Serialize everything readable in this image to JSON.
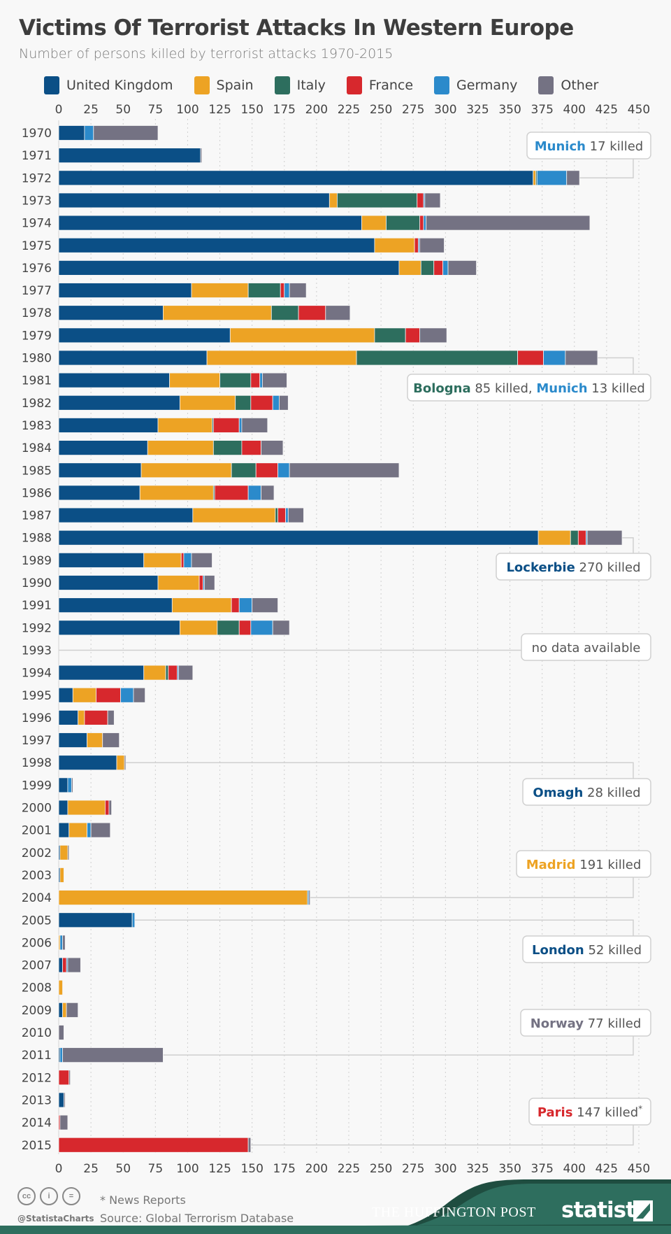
{
  "title": "Victims Of Terrorist Attacks In Western Europe",
  "subtitle": "Number of persons killed by terrorist attacks 1970-2015",
  "footer": {
    "note": "* News Reports",
    "source": "Source: Global Terrorism Database",
    "handle": "@StatistaCharts",
    "partner": "THE HUFFINGTON POST",
    "brand": "statista",
    "cc_icons": [
      "cc-icon",
      "attribution-icon",
      "no-derivatives-icon"
    ],
    "cc_glyphs": [
      "cc",
      "i",
      "="
    ]
  },
  "chart_data": {
    "type": "bar",
    "orientation": "horizontal",
    "stacked": true,
    "title": "Victims Of Terrorist Attacks In Western Europe",
    "subtitle": "Number of persons killed by terrorist attacks 1970-2015",
    "xlim": [
      0,
      450
    ],
    "xticks": [
      "0",
      "25",
      "50",
      "75",
      "100",
      "125",
      "150",
      "175",
      "200",
      "225",
      "250",
      "275",
      "300",
      "325",
      "350",
      "375",
      "400",
      "425",
      "450"
    ],
    "grid": "vertical dotted",
    "legend_position": "top",
    "categories": [
      "1970",
      "1971",
      "1972",
      "1973",
      "1974",
      "1975",
      "1976",
      "1977",
      "1978",
      "1979",
      "1980",
      "1981",
      "1982",
      "1983",
      "1984",
      "1985",
      "1986",
      "1987",
      "1988",
      "1989",
      "1990",
      "1991",
      "1992",
      "1993",
      "1994",
      "1995",
      "1996",
      "1997",
      "1998",
      "1999",
      "2000",
      "2001",
      "2002",
      "2003",
      "2004",
      "2005",
      "2006",
      "2007",
      "2008",
      "2009",
      "2010",
      "2011",
      "2012",
      "2013",
      "2014",
      "2015"
    ],
    "series": [
      {
        "name": "United Kingdom",
        "color": "#0b4f86",
        "values": [
          20,
          110,
          368,
          210,
          235,
          245,
          264,
          103,
          81,
          133,
          115,
          86,
          94,
          77,
          69,
          64,
          63,
          104,
          372,
          66,
          77,
          88,
          94,
          null,
          66,
          11,
          15,
          22,
          45,
          7,
          7,
          8,
          1,
          1,
          0,
          57,
          0,
          3,
          0,
          3,
          0,
          1,
          0,
          4,
          0,
          0
        ]
      },
      {
        "name": "Spain",
        "color": "#eda324",
        "values": [
          0,
          0,
          2,
          6,
          19,
          31,
          17,
          44,
          84,
          112,
          116,
          39,
          43,
          42,
          51,
          70,
          57,
          64,
          25,
          29,
          32,
          46,
          29,
          null,
          17,
          18,
          5,
          12,
          6,
          0,
          29,
          14,
          6,
          3,
          193,
          0,
          1,
          0,
          3,
          3,
          0,
          0,
          0,
          0,
          0,
          0
        ]
      },
      {
        "name": "Italy",
        "color": "#2d6e5e",
        "values": [
          0,
          0,
          1,
          62,
          26,
          0,
          10,
          25,
          21,
          24,
          125,
          24,
          12,
          1,
          22,
          19,
          1,
          2,
          6,
          0,
          0,
          0,
          17,
          null,
          2,
          0,
          0,
          0,
          0,
          0,
          0,
          0,
          0,
          0,
          0,
          0,
          0,
          0,
          0,
          0,
          0,
          0,
          0,
          0,
          0,
          0
        ]
      },
      {
        "name": "France",
        "color": "#d7282d",
        "values": [
          0,
          0,
          0,
          5,
          3,
          3,
          7,
          3,
          21,
          11,
          20,
          7,
          17,
          20,
          15,
          17,
          26,
          6,
          6,
          2,
          3,
          6,
          9,
          null,
          7,
          19,
          18,
          0,
          0,
          0,
          3,
          0,
          0,
          0,
          0,
          0,
          0,
          3,
          0,
          0,
          0,
          0,
          8,
          0,
          1,
          147
        ]
      },
      {
        "name": "Germany",
        "color": "#2b8acb",
        "values": [
          7,
          0,
          23,
          1,
          2,
          1,
          4,
          4,
          0,
          0,
          17,
          2,
          5,
          2,
          0,
          9,
          10,
          2,
          1,
          6,
          1,
          10,
          17,
          null,
          1,
          10,
          0,
          0,
          0,
          3,
          0,
          3,
          0,
          0,
          1,
          2,
          2,
          1,
          0,
          0,
          0,
          2,
          0,
          0,
          0,
          0
        ]
      },
      {
        "name": "Other",
        "color": "#747283",
        "values": [
          50,
          1,
          10,
          12,
          127,
          19,
          22,
          13,
          19,
          21,
          25,
          19,
          7,
          20,
          17,
          85,
          10,
          12,
          27,
          16,
          8,
          20,
          13,
          null,
          11,
          9,
          5,
          13,
          1,
          1,
          2,
          15,
          1,
          0,
          1,
          0,
          2,
          10,
          0,
          9,
          4,
          78,
          1,
          1,
          6,
          2
        ]
      }
    ],
    "annotations": [
      {
        "year": "1972",
        "parts": [
          {
            "text": "Munich",
            "color": "#2b8acb"
          },
          {
            "text": " 17 killed"
          }
        ]
      },
      {
        "year": "1980",
        "parts": [
          {
            "text": "Bologna",
            "color": "#2d6e5e"
          },
          {
            "text": " 85 killed, "
          },
          {
            "text": "Munich",
            "color": "#2b8acb"
          },
          {
            "text": " 13 killed"
          }
        ]
      },
      {
        "year": "1988",
        "parts": [
          {
            "text": "Lockerbie",
            "color": "#0b4f86"
          },
          {
            "text": " 270 killed"
          }
        ]
      },
      {
        "year": "1993",
        "parts": [
          {
            "text": "no data available"
          }
        ]
      },
      {
        "year": "1998",
        "parts": [
          {
            "text": "Omagh",
            "color": "#0b4f86"
          },
          {
            "text": " 28 killed"
          }
        ]
      },
      {
        "year": "2004",
        "parts": [
          {
            "text": "Madrid",
            "color": "#eda324"
          },
          {
            "text": " 191 killed"
          }
        ]
      },
      {
        "year": "2005",
        "parts": [
          {
            "text": "London",
            "color": "#0b4f86"
          },
          {
            "text": " 52 killed"
          }
        ]
      },
      {
        "year": "2011",
        "parts": [
          {
            "text": "Norway",
            "color": "#747283"
          },
          {
            "text": " 77 killed"
          }
        ]
      },
      {
        "year": "2015",
        "parts": [
          {
            "text": "Paris",
            "color": "#d7282d"
          },
          {
            "text": " 147 killed"
          },
          {
            "text": "*",
            "sup": true
          }
        ]
      }
    ]
  }
}
